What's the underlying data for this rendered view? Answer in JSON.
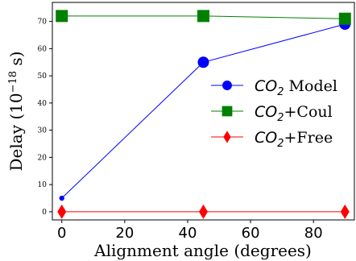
{
  "chart_data": {
    "type": "line",
    "xlabel": "Alignment angle (degrees)",
    "ylabel_parts": {
      "main": "Delay (10",
      "exp": "−18",
      "unit": " s)"
    },
    "xlim": [
      -3,
      93
    ],
    "ylim": [
      -3,
      77
    ],
    "x_ticks": [
      0,
      20,
      40,
      60,
      80
    ],
    "y_ticks": [
      0,
      10,
      20,
      30,
      40,
      50,
      60,
      70
    ],
    "grid": false,
    "legend_position": "center-right",
    "series": [
      {
        "name_parts": {
          "base": "CO",
          "sub": "2",
          "suffix": " Model"
        },
        "x": [
          0,
          45,
          90
        ],
        "y": [
          5,
          55,
          69
        ],
        "color": "#0000ff",
        "marker": "circle",
        "marker_sizes": [
          "small",
          "large",
          "large"
        ]
      },
      {
        "name_parts": {
          "base": "CO",
          "sub": "2",
          "suffix": "+Coul"
        },
        "x": [
          0,
          45,
          90
        ],
        "y": [
          72,
          72,
          71
        ],
        "color": "#008000",
        "marker": "square",
        "marker_sizes": [
          "large",
          "large",
          "large"
        ]
      },
      {
        "name_parts": {
          "base": "CO",
          "sub": "2",
          "suffix": "+Free"
        },
        "x": [
          0,
          45,
          90
        ],
        "y": [
          0,
          0,
          0
        ],
        "color": "#ff0000",
        "marker": "diamond",
        "marker_sizes": [
          "large",
          "large",
          "large"
        ]
      }
    ]
  }
}
